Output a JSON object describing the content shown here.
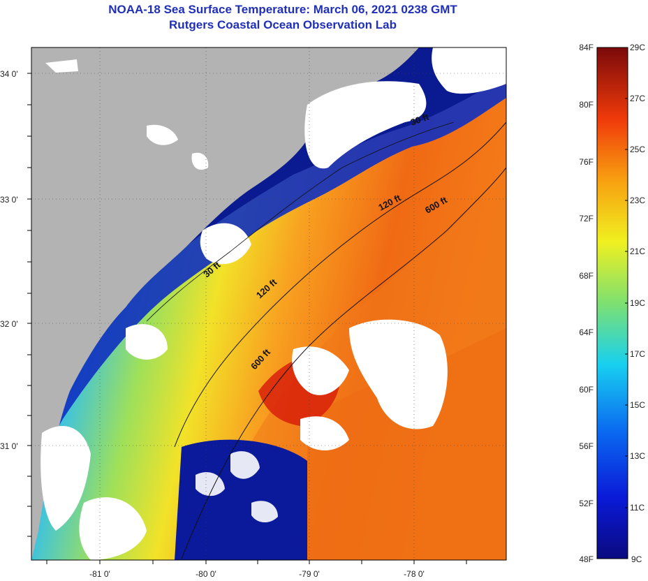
{
  "header": {
    "title": "NOAA-18 Sea Surface Temperature:  March 06, 2021 0238 GMT",
    "subtitle": "Rutgers Coastal Ocean Observation Lab"
  },
  "map": {
    "lat_ticks": [
      "34 0'",
      "33 0'",
      "32 0'",
      "31 0'"
    ],
    "lon_ticks": [
      "-81 0'",
      "-80 0'",
      "-79 0'",
      "-78 0'"
    ],
    "depth_contours": [
      "30 ft",
      "120 ft",
      "600 ft",
      "30 ft",
      "120 ft",
      "600 ft"
    ],
    "colors": {
      "land": "#b3b3b3",
      "cloud": "#ffffff",
      "cold": "#0a1a9a",
      "warm": "#f05a10"
    }
  },
  "colorbar": {
    "fahrenheit": [
      "84F",
      "80F",
      "76F",
      "72F",
      "68F",
      "64F",
      "60F",
      "56F",
      "52F",
      "48F"
    ],
    "celsius": [
      "29C",
      "27C",
      "25C",
      "23C",
      "21C",
      "19C",
      "17C",
      "15C",
      "13C",
      "11C",
      "9C"
    ]
  }
}
